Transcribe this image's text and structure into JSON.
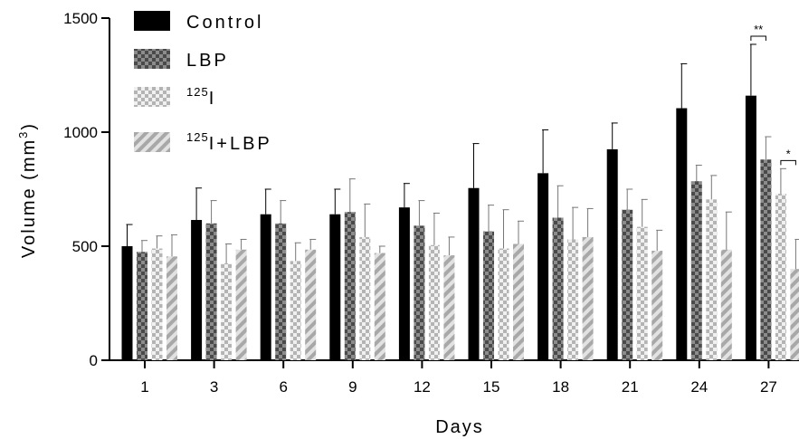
{
  "chart_data": {
    "type": "bar",
    "xlabel": "Days",
    "ylabel": "Volume (mm",
    "ylabel_superscript": "3",
    "ylabel_suffix": ")",
    "ylim": [
      0,
      1500
    ],
    "yticks": [
      "0",
      "500",
      "1000",
      "1500"
    ],
    "grid": false,
    "legend_position": "top-left",
    "categories": [
      "1",
      "3",
      "6",
      "9",
      "12",
      "15",
      "18",
      "21",
      "24",
      "27"
    ],
    "series": [
      {
        "name": "Control",
        "superscript": "",
        "name_suffix": "",
        "pattern": "solid",
        "values": [
          500,
          615,
          640,
          640,
          670,
          755,
          820,
          925,
          1105,
          1160
        ],
        "errors": [
          95,
          140,
          110,
          110,
          105,
          195,
          190,
          115,
          195,
          225
        ]
      },
      {
        "name": "LBP",
        "superscript": "",
        "name_suffix": "",
        "pattern": "checker-dark",
        "values": [
          475,
          600,
          600,
          650,
          590,
          565,
          625,
          660,
          785,
          880
        ],
        "errors": [
          50,
          100,
          100,
          145,
          110,
          115,
          140,
          90,
          70,
          100
        ]
      },
      {
        "name": "",
        "superscript": "125",
        "name_suffix": "I",
        "pattern": "checker-light",
        "values": [
          490,
          425,
          435,
          540,
          505,
          490,
          530,
          585,
          705,
          730
        ],
        "errors": [
          55,
          85,
          80,
          145,
          140,
          170,
          140,
          120,
          105,
          110
        ]
      },
      {
        "name": "",
        "superscript": "125",
        "name_suffix": "I+LBP",
        "pattern": "diagonal",
        "values": [
          455,
          485,
          485,
          470,
          460,
          510,
          540,
          480,
          485,
          400
        ],
        "errors": [
          95,
          45,
          45,
          30,
          80,
          100,
          125,
          90,
          165,
          130
        ]
      }
    ],
    "annotations": [
      {
        "text": "**",
        "category": "27",
        "from_series": 0,
        "to_series": 1
      },
      {
        "text": "*",
        "category": "27",
        "from_series": 2,
        "to_series": 3
      }
    ]
  }
}
